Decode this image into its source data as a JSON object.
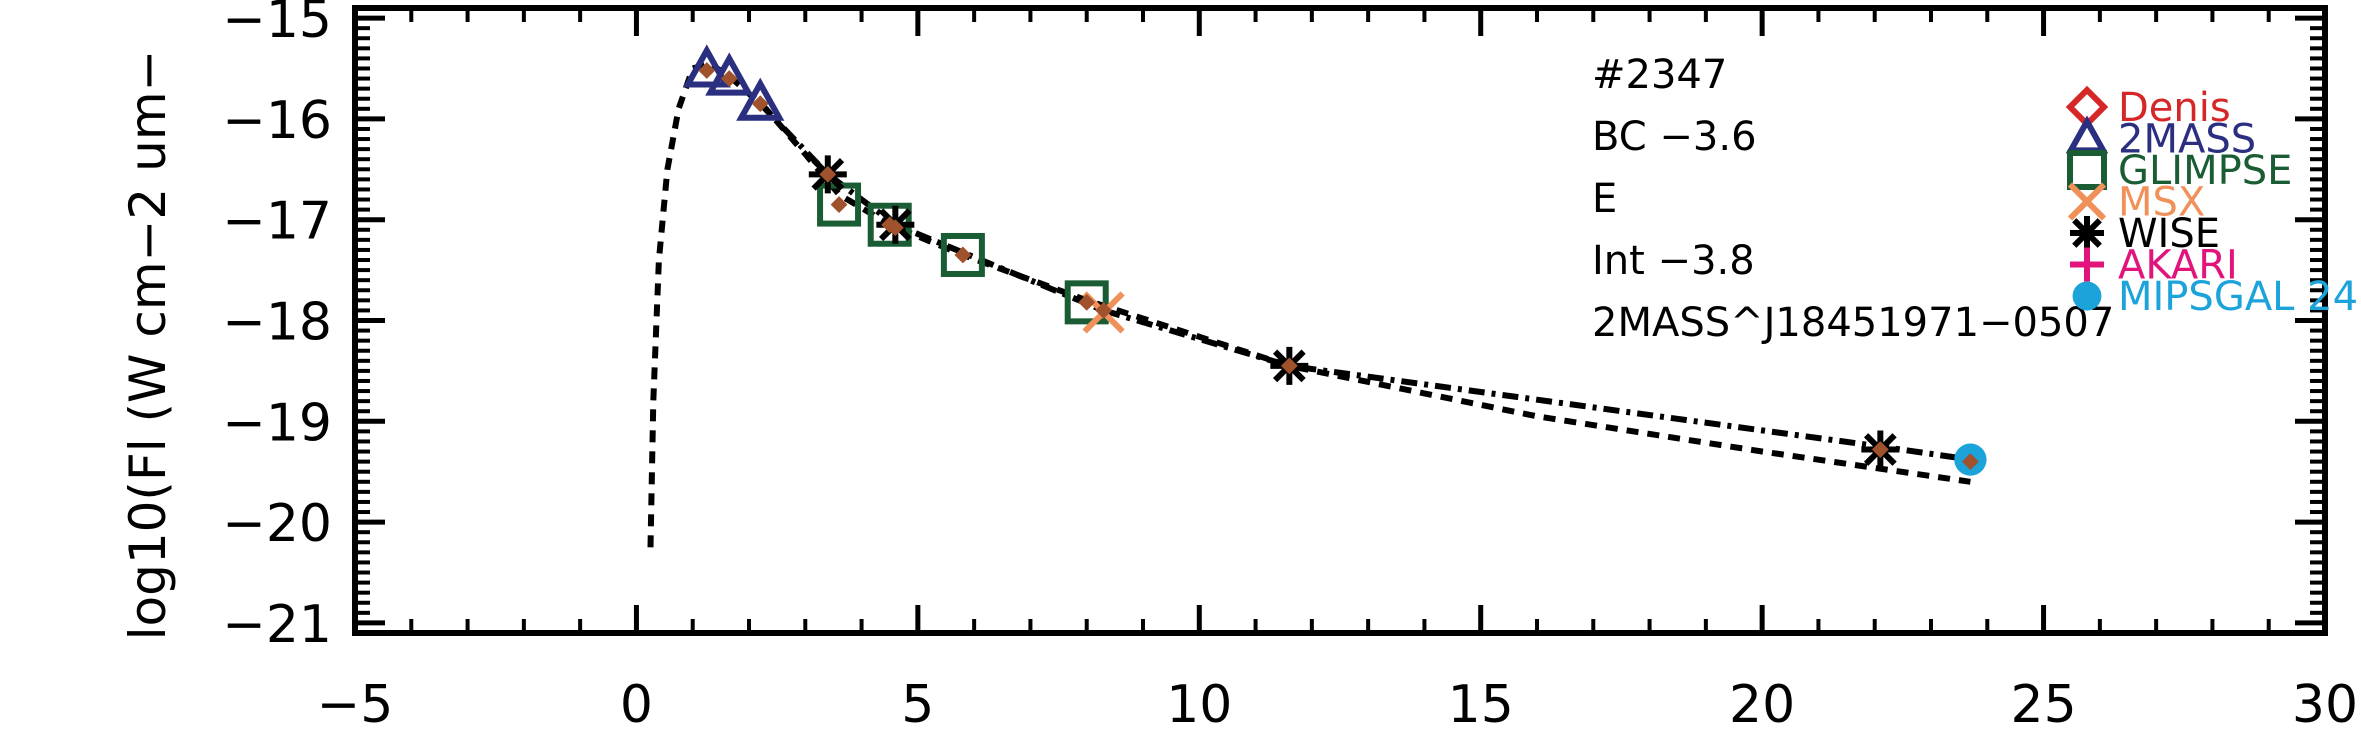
{
  "chart_data": {
    "type": "scatter",
    "title": "",
    "ylabel": "log10(Fl (W cm−2 um−",
    "xlabel": "",
    "xlim": [
      -5,
      30
    ],
    "ylim": [
      -21.1,
      -14.9
    ],
    "x_ticks": [
      -5,
      0,
      5,
      10,
      15,
      20,
      25,
      30
    ],
    "x_tick_labels": [
      "−5",
      "0",
      "5",
      "10",
      "15",
      "20",
      "25",
      "30"
    ],
    "y_ticks": [
      -15,
      -16,
      -17,
      -18,
      -19,
      -20,
      -21
    ],
    "y_tick_labels": [
      "−15",
      "−16",
      "−17",
      "−18",
      "−19",
      "−20",
      "−21"
    ],
    "annotations": [
      "#2347",
      "BC −3.6",
      "E",
      "Int −3.8",
      "2MASS^J18451971−0507"
    ],
    "legend_position": "top-right",
    "series": [
      {
        "name": "Denis",
        "marker": "diamond",
        "color": "#d62728",
        "points": []
      },
      {
        "name": "2MASS",
        "marker": "triangle",
        "color": "#2b2f7f",
        "points": [
          [
            1.25,
            -15.52
          ],
          [
            1.65,
            -15.6
          ],
          [
            2.2,
            -15.85
          ]
        ]
      },
      {
        "name": "GLIMPSE",
        "marker": "square",
        "color": "#1a5c33",
        "points": [
          [
            3.6,
            -16.85
          ],
          [
            4.5,
            -17.05
          ],
          [
            5.8,
            -17.35
          ],
          [
            8.0,
            -17.82
          ]
        ]
      },
      {
        "name": "MSX",
        "marker": "x",
        "color": "#f0915a",
        "points": [
          [
            8.3,
            -17.92
          ]
        ]
      },
      {
        "name": "WISE",
        "marker": "asterisk",
        "color": "#000000",
        "points": [
          [
            3.4,
            -16.55
          ],
          [
            4.6,
            -17.05
          ],
          [
            11.6,
            -18.45
          ],
          [
            22.1,
            -19.28
          ]
        ]
      },
      {
        "name": "AKARI",
        "marker": "plus",
        "color": "#e0147a",
        "points": []
      },
      {
        "name": "MIPSGAL 24",
        "marker": "circle",
        "color": "#1ca3d9",
        "points": [
          [
            23.7,
            -19.38
          ]
        ]
      }
    ],
    "model_points": {
      "color": "#a0522d",
      "points": [
        [
          1.25,
          -15.52
        ],
        [
          1.65,
          -15.6
        ],
        [
          2.2,
          -15.85
        ],
        [
          3.4,
          -16.55
        ],
        [
          3.6,
          -16.85
        ],
        [
          4.5,
          -17.05
        ],
        [
          4.6,
          -17.08
        ],
        [
          5.8,
          -17.35
        ],
        [
          8.0,
          -17.82
        ],
        [
          8.3,
          -17.9
        ],
        [
          11.6,
          -18.45
        ],
        [
          22.1,
          -19.28
        ],
        [
          23.7,
          -19.4
        ]
      ]
    },
    "model_dashed": {
      "style": "dashed",
      "points": [
        [
          0.25,
          -20.25
        ],
        [
          0.3,
          -18.8
        ],
        [
          0.4,
          -17.4
        ],
        [
          0.55,
          -16.5
        ],
        [
          0.75,
          -15.9
        ],
        [
          1.0,
          -15.5
        ],
        [
          1.3,
          -15.45
        ],
        [
          1.7,
          -15.6
        ],
        [
          2.3,
          -15.9
        ],
        [
          3.0,
          -16.35
        ],
        [
          3.6,
          -16.75
        ],
        [
          4.5,
          -17.05
        ],
        [
          5.8,
          -17.35
        ],
        [
          8.0,
          -17.8
        ],
        [
          11.6,
          -18.45
        ],
        [
          16.0,
          -18.95
        ],
        [
          20.0,
          -19.3
        ],
        [
          23.7,
          -19.6
        ]
      ]
    },
    "model_dashdot": {
      "style": "dashdot",
      "points": [
        [
          2.2,
          -15.85
        ],
        [
          3.4,
          -16.55
        ],
        [
          4.6,
          -17.05
        ],
        [
          8.3,
          -17.9
        ],
        [
          11.6,
          -18.45
        ],
        [
          22.1,
          -19.25
        ],
        [
          23.7,
          -19.38
        ]
      ]
    }
  }
}
